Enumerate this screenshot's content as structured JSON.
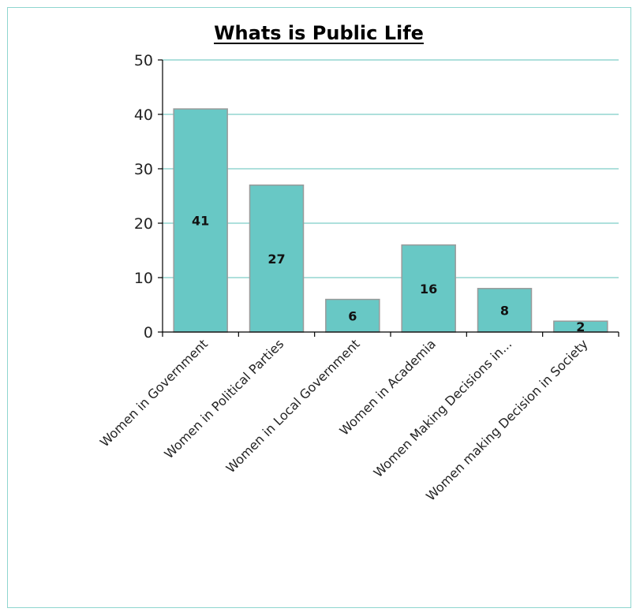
{
  "chart_data": {
    "type": "bar",
    "title": "Whats is Public Life",
    "categories": [
      "Women in Government",
      "Women in Political Parties",
      "Women in Local Government",
      "Women in Academia",
      "Women Making Decisions in...",
      "Women making Decision in Society"
    ],
    "values": [
      41,
      27,
      6,
      16,
      8,
      2
    ],
    "ylim": [
      0,
      50
    ],
    "yticks": [
      0,
      10,
      20,
      30,
      40,
      50
    ],
    "grid": true,
    "xlabel": "",
    "ylabel": "",
    "colors": {
      "bar": "#68c8c5",
      "bar_edge": "#9a9a9a",
      "grid": "#5cc0ba",
      "frame": "#8fd6cf"
    }
  }
}
